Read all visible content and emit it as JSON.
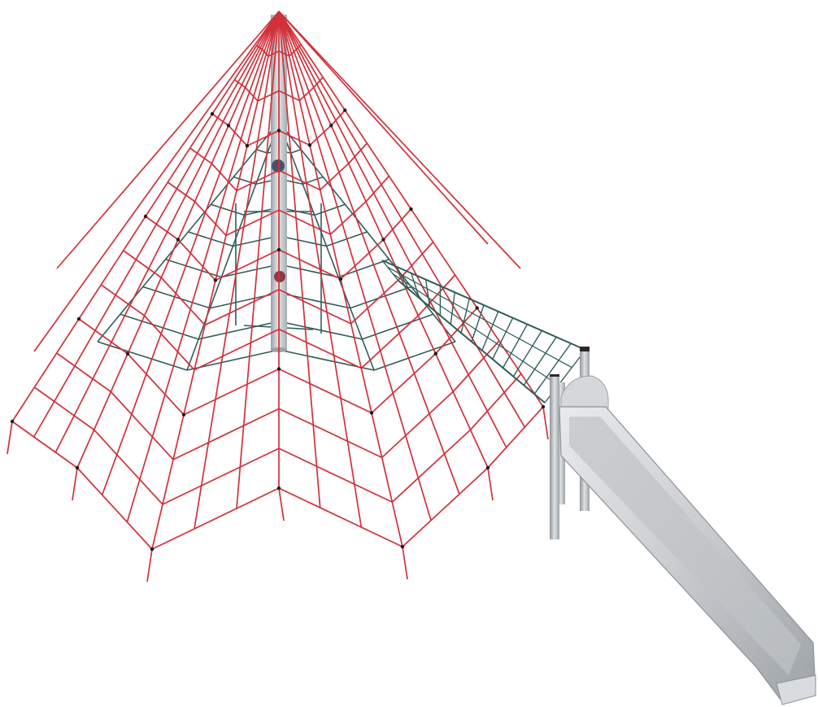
{
  "scene": {
    "colors": {
      "background": "#ffffff",
      "outer_rope": "#d2303a",
      "inner_rope": "#2f5d5a",
      "mast": "#c9ced2",
      "mast_shadow": "#9aa1a6",
      "steel": "#c6c9cc",
      "steel_dark": "#8e9295",
      "connector": "#1b1b1b"
    },
    "objects": [
      "rope-pyramid-icon",
      "center-mast-icon",
      "inner-net-icon",
      "rope-bridge-icon",
      "slide-platform-icon",
      "steel-slide-icon"
    ]
  }
}
